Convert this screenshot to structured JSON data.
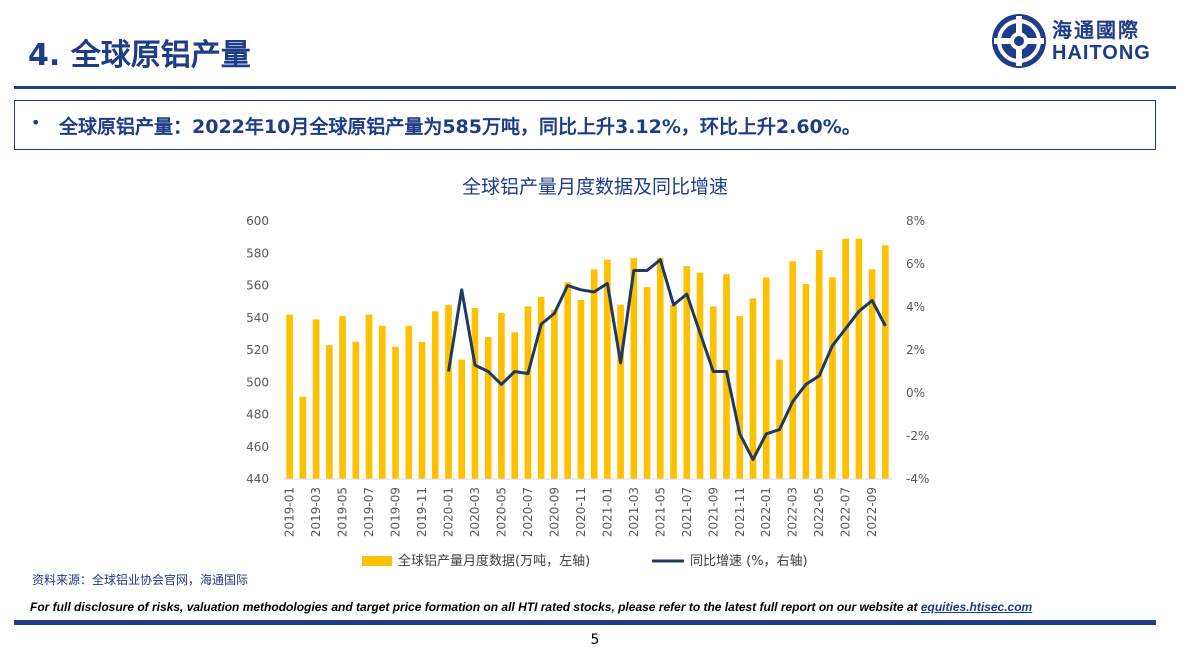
{
  "page": {
    "title": "4. 全球原铝产量",
    "logo_cn": "海通國際",
    "logo_en": "HAITONG",
    "bullet": "•",
    "summary": "全球原铝产量：2022年10月全球原铝产量为585万吨，同比上升3.12%，环比上升2.60%。",
    "source": "资料来源：全球铝业协会官网，海通国际",
    "disclaimer": "For full disclosure of risks, valuation methodologies and target price formation on all HTI rated stocks, please refer to the latest full report on our website at ",
    "disclaimer_link": "equities.htisec.com",
    "page_number": "5"
  },
  "colors": {
    "brand": "#1f3c88",
    "bar": "#ffc000",
    "line": "#1f3a5f"
  },
  "icons": {
    "logo": "haitong-logo-icon"
  },
  "chart_data": {
    "type": "bar",
    "title": "全球铝产量月度数据及同比增速",
    "categories": [
      "2019-01",
      "2019-02",
      "2019-03",
      "2019-04",
      "2019-05",
      "2019-06",
      "2019-07",
      "2019-08",
      "2019-09",
      "2019-10",
      "2019-11",
      "2019-12",
      "2020-01",
      "2020-02",
      "2020-03",
      "2020-04",
      "2020-05",
      "2020-06",
      "2020-07",
      "2020-08",
      "2020-09",
      "2020-10",
      "2020-11",
      "2020-12",
      "2021-01",
      "2021-02",
      "2021-03",
      "2021-04",
      "2021-05",
      "2021-06",
      "2021-07",
      "2021-08",
      "2021-09",
      "2021-10",
      "2021-11",
      "2021-12",
      "2022-01",
      "2022-02",
      "2022-03",
      "2022-04",
      "2022-05",
      "2022-06",
      "2022-07",
      "2022-08",
      "2022-09",
      "2022-10"
    ],
    "x_tick_labels": [
      "2019-01",
      "2019-03",
      "2019-05",
      "2019-07",
      "2019-09",
      "2019-11",
      "2020-01",
      "2020-03",
      "2020-05",
      "2020-07",
      "2020-09",
      "2020-11",
      "2021-01",
      "2021-03",
      "2021-05",
      "2021-07",
      "2021-09",
      "2021-11",
      "2022-01",
      "2022-03",
      "2022-05",
      "2022-07",
      "2022-09"
    ],
    "series": [
      {
        "name": "全球铝产量月度数据(万吨，左轴)",
        "type": "bar",
        "axis": "left",
        "values": [
          542,
          491,
          539,
          523,
          541,
          525,
          542,
          535,
          522,
          535,
          525,
          544,
          548,
          514,
          546,
          528,
          543,
          531,
          547,
          553,
          545,
          562,
          551,
          570,
          576,
          548,
          577,
          559,
          577,
          548,
          572,
          568,
          547,
          567,
          541,
          552,
          565,
          514,
          575,
          561,
          582,
          565,
          589,
          589,
          570,
          585
        ]
      },
      {
        "name": "同比增速 (%，右轴)",
        "type": "line",
        "axis": "right",
        "values": [
          null,
          null,
          null,
          null,
          null,
          null,
          null,
          null,
          null,
          null,
          null,
          null,
          1.0,
          4.8,
          1.3,
          1.0,
          0.4,
          1.0,
          0.9,
          3.2,
          3.7,
          5.0,
          4.8,
          4.7,
          5.1,
          1.4,
          5.7,
          5.7,
          6.2,
          4.1,
          4.6,
          2.8,
          1.0,
          1.0,
          -1.9,
          -3.1,
          -1.9,
          -1.7,
          -0.4,
          0.4,
          0.8,
          2.2,
          3.0,
          3.8,
          4.3,
          3.12
        ]
      }
    ],
    "y_left": {
      "ticks": [
        "440",
        "460",
        "480",
        "500",
        "520",
        "540",
        "560",
        "580",
        "600"
      ],
      "ylim": [
        440,
        600
      ]
    },
    "y_right": {
      "ticks": [
        "-4%",
        "-2%",
        "0%",
        "2%",
        "4%",
        "6%",
        "8%"
      ],
      "ylim": [
        -4,
        8
      ]
    },
    "grid": false,
    "legend_position": "bottom"
  }
}
